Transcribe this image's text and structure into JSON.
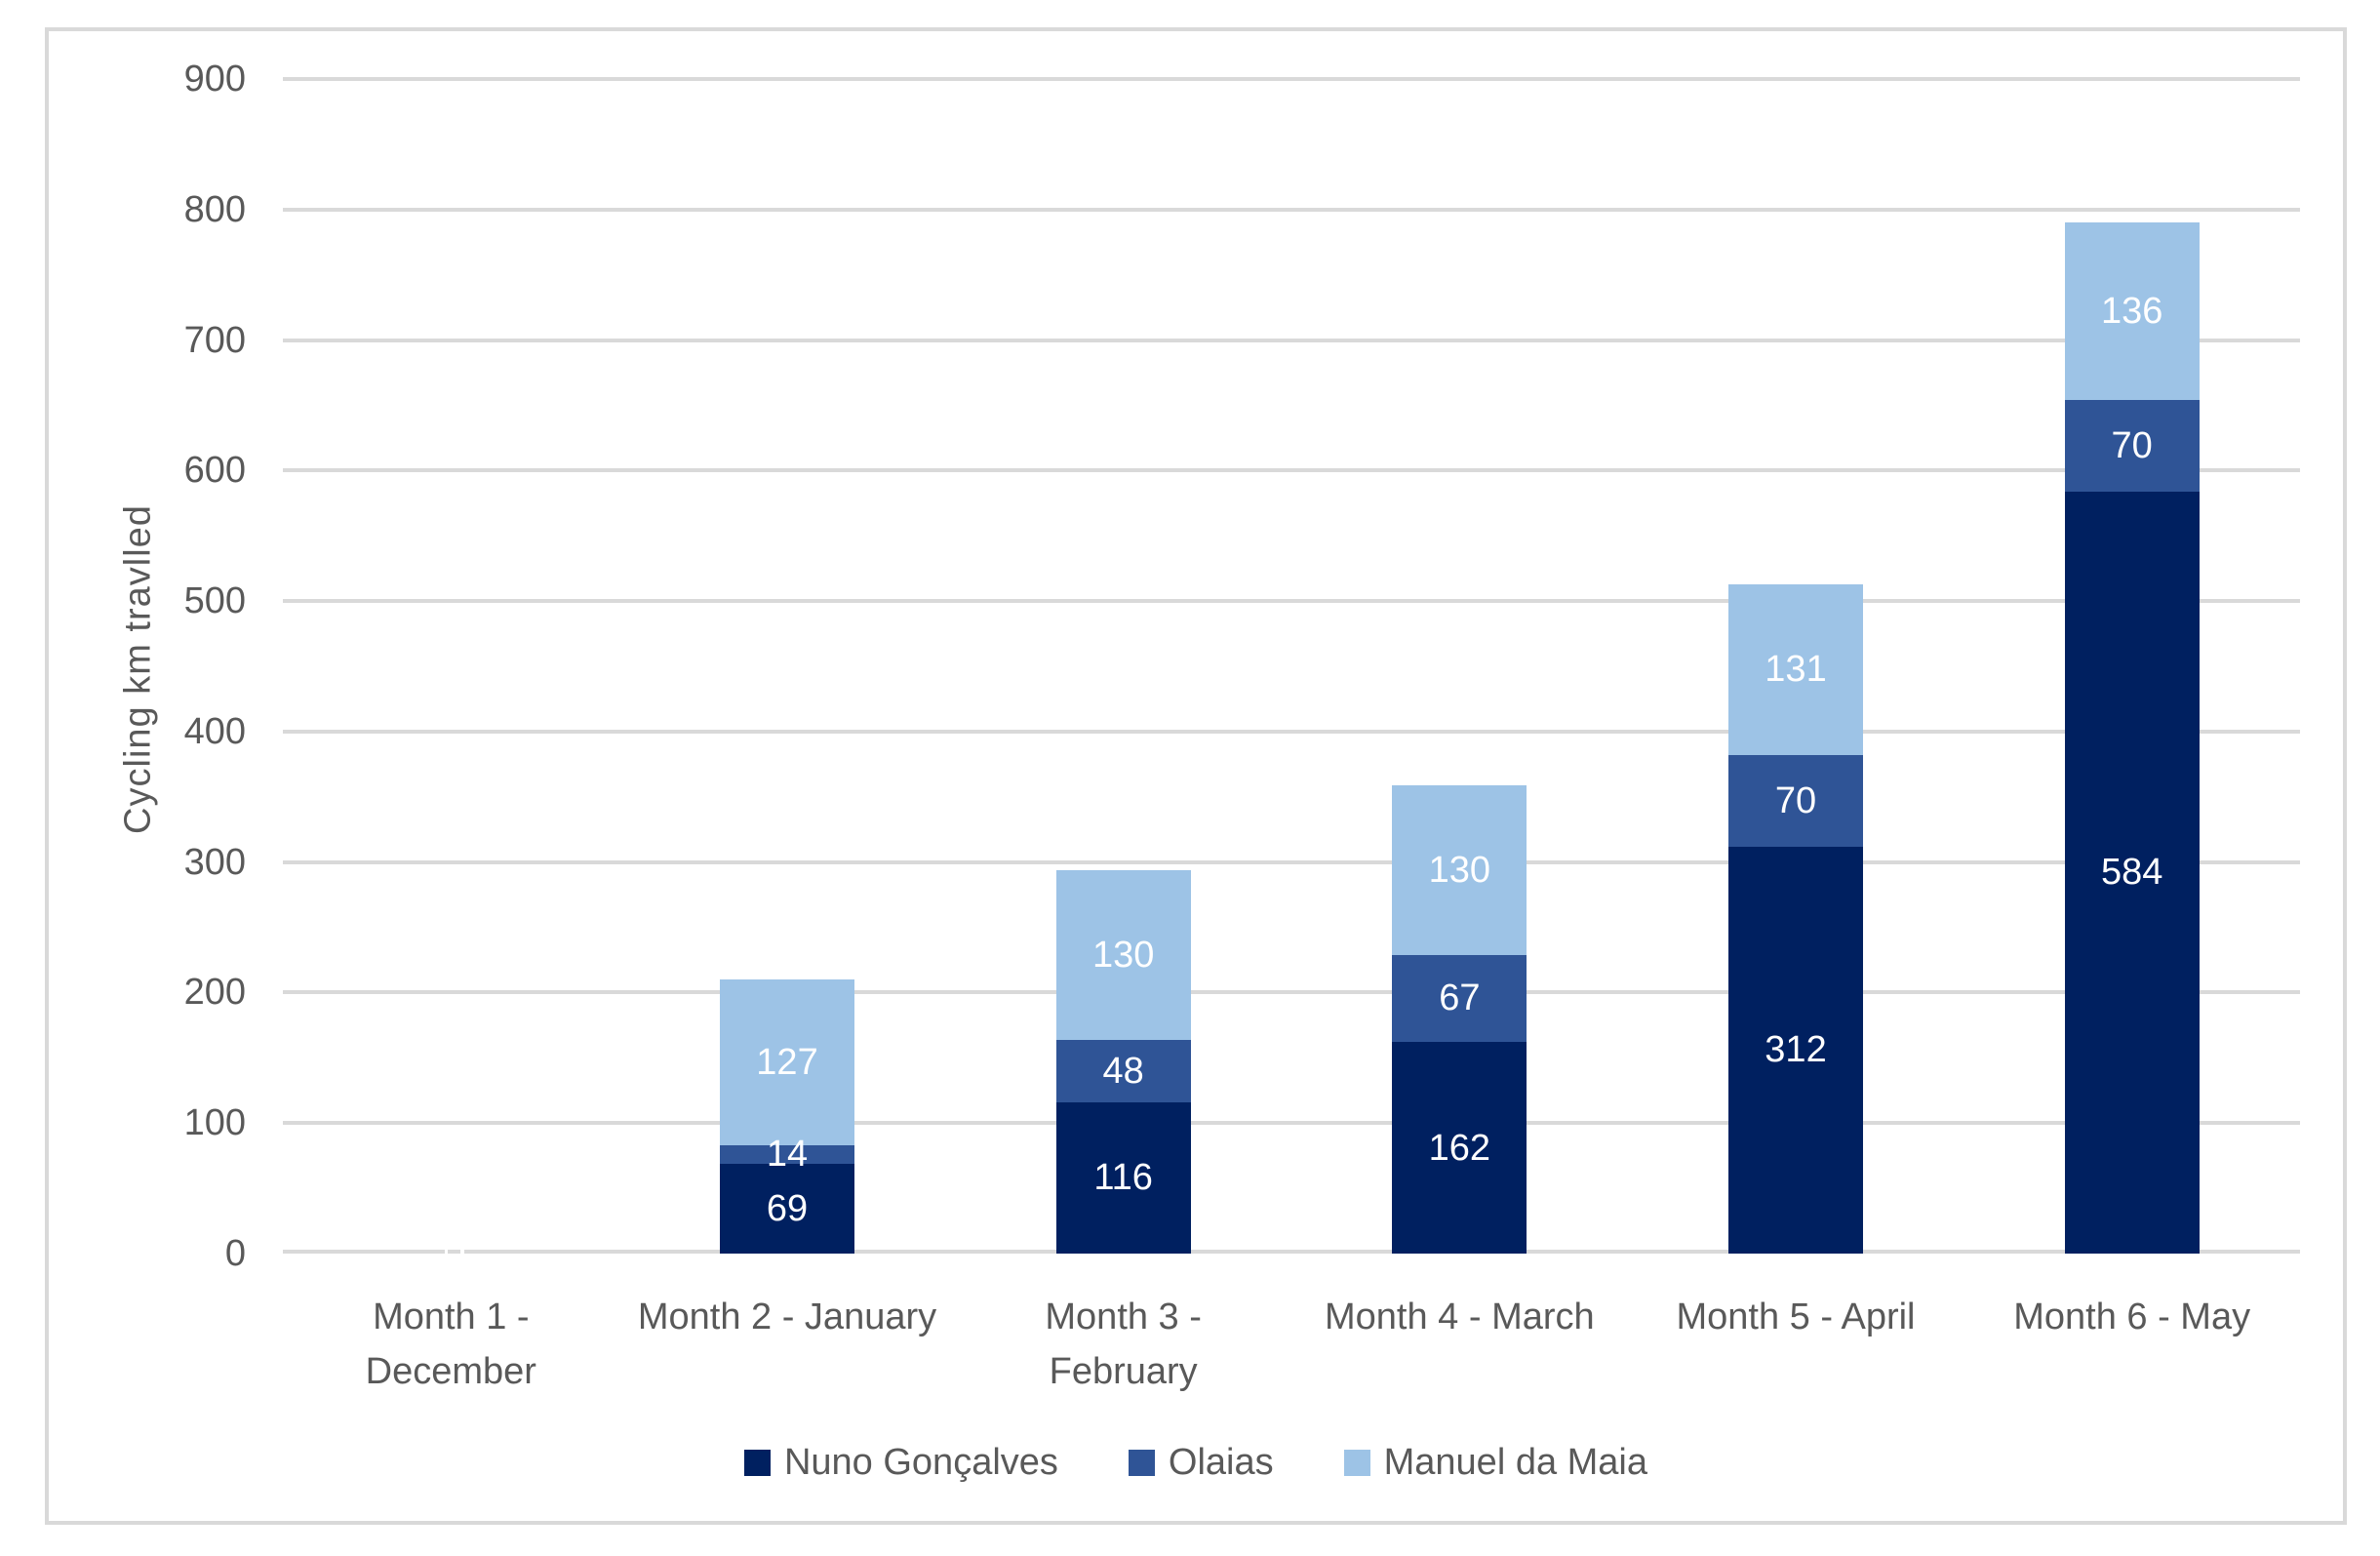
{
  "chart_data": {
    "type": "bar",
    "stacked": true,
    "title": "",
    "xlabel": "",
    "ylabel": "Cycling km travlled",
    "ylim": [
      0,
      900
    ],
    "ytick_step": 100,
    "yticks": [
      0,
      100,
      200,
      300,
      400,
      500,
      600,
      700,
      800,
      900
    ],
    "grid": true,
    "legend_position": "bottom",
    "data_labels": true,
    "data_label_color": "#FFFFFF",
    "categories": [
      "Month 1 -\nDecember",
      "Month 2 - January",
      "Month 3 -\nFebruary",
      "Month 4 - March",
      "Month 5 - April",
      "Month 6 - May"
    ],
    "series": [
      {
        "name": "Nuno Gonçalves",
        "color": "#002060",
        "values": [
          0,
          69,
          116,
          162,
          312,
          584
        ]
      },
      {
        "name": "Olaias",
        "color": "#2F5496",
        "values": [
          0,
          14,
          48,
          67,
          70,
          70
        ]
      },
      {
        "name": "Manuel da Maia",
        "color": "#9DC3E6",
        "values": [
          0,
          127,
          130,
          130,
          131,
          136
        ]
      }
    ],
    "totals": [
      0,
      210,
      294,
      359,
      513,
      790
    ]
  },
  "colors": {
    "gridline": "#D9D9D9",
    "frame_border": "#D9D9D9",
    "axis_text": "#595959",
    "background": "#FFFFFF"
  }
}
